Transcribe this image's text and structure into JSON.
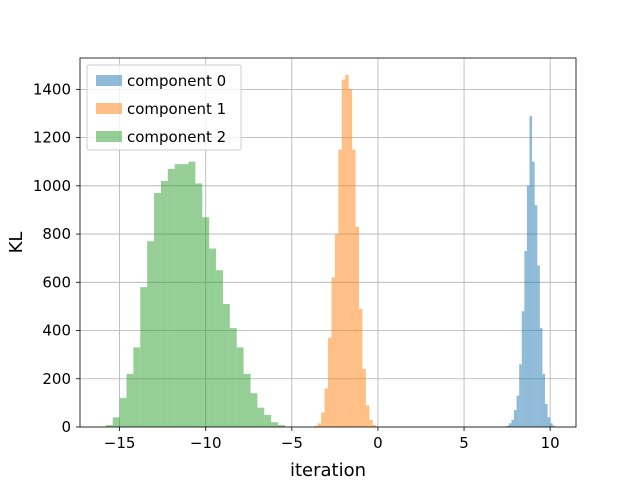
{
  "chart_data": {
    "type": "histogram",
    "xlabel": "iteration",
    "ylabel": "KL",
    "xlim": [
      -17.3,
      11.5
    ],
    "ylim": [
      0,
      1530
    ],
    "xticks": [
      -15,
      -10,
      -5,
      0,
      5,
      10
    ],
    "xtick_labels": [
      "−15",
      "−10",
      "−5",
      "0",
      "5",
      "10"
    ],
    "yticks": [
      0,
      200,
      400,
      600,
      800,
      1000,
      1200,
      1400
    ],
    "ytick_labels": [
      "0",
      "200",
      "400",
      "600",
      "800",
      "1000",
      "1200",
      "1400"
    ],
    "grid": true,
    "legend_position": "top-left",
    "series": [
      {
        "name": "component 0",
        "color": "#1f77b4",
        "alpha": 0.5,
        "bins": [
          [
            7.3,
            7.45,
            2
          ],
          [
            7.45,
            7.6,
            5
          ],
          [
            7.6,
            7.75,
            15
          ],
          [
            7.75,
            7.9,
            30
          ],
          [
            7.9,
            8.05,
            70
          ],
          [
            8.05,
            8.2,
            130
          ],
          [
            8.2,
            8.35,
            260
          ],
          [
            8.35,
            8.5,
            480
          ],
          [
            8.5,
            8.65,
            730
          ],
          [
            8.65,
            8.8,
            1000
          ],
          [
            8.8,
            8.95,
            1290
          ],
          [
            8.95,
            9.1,
            1100
          ],
          [
            9.1,
            9.25,
            920
          ],
          [
            9.25,
            9.4,
            670
          ],
          [
            9.4,
            9.55,
            410
          ],
          [
            9.55,
            9.7,
            220
          ],
          [
            9.7,
            9.85,
            95
          ],
          [
            9.85,
            10.0,
            40
          ],
          [
            10.0,
            10.15,
            15
          ],
          [
            10.15,
            10.3,
            5
          ]
        ]
      },
      {
        "name": "component 1",
        "color": "#ff7f0e",
        "alpha": 0.5,
        "bins": [
          [
            -3.7,
            -3.5,
            5
          ],
          [
            -3.5,
            -3.3,
            15
          ],
          [
            -3.3,
            -3.1,
            60
          ],
          [
            -3.1,
            -2.9,
            160
          ],
          [
            -2.9,
            -2.7,
            370
          ],
          [
            -2.7,
            -2.5,
            620
          ],
          [
            -2.5,
            -2.3,
            800
          ],
          [
            -2.3,
            -2.1,
            1150
          ],
          [
            -2.1,
            -1.9,
            1440
          ],
          [
            -1.9,
            -1.7,
            1460
          ],
          [
            -1.7,
            -1.5,
            1400
          ],
          [
            -1.5,
            -1.3,
            1150
          ],
          [
            -1.3,
            -1.1,
            830
          ],
          [
            -1.1,
            -0.9,
            490
          ],
          [
            -0.9,
            -0.7,
            240
          ],
          [
            -0.7,
            -0.5,
            90
          ],
          [
            -0.5,
            -0.3,
            30
          ],
          [
            -0.3,
            -0.1,
            8
          ]
        ]
      },
      {
        "name": "component 2",
        "color": "#2ca02c",
        "alpha": 0.5,
        "bins": [
          [
            -16.2,
            -15.8,
            2
          ],
          [
            -15.8,
            -15.4,
            8
          ],
          [
            -15.4,
            -15.0,
            40
          ],
          [
            -15.0,
            -14.6,
            120
          ],
          [
            -14.6,
            -14.2,
            220
          ],
          [
            -14.2,
            -13.8,
            330
          ],
          [
            -13.8,
            -13.4,
            580
          ],
          [
            -13.4,
            -13.0,
            770
          ],
          [
            -13.0,
            -12.6,
            970
          ],
          [
            -12.6,
            -12.2,
            1020
          ],
          [
            -12.2,
            -11.8,
            1070
          ],
          [
            -11.8,
            -11.4,
            1090
          ],
          [
            -11.4,
            -11.0,
            1090
          ],
          [
            -11.0,
            -10.6,
            1100
          ],
          [
            -10.6,
            -10.2,
            1010
          ],
          [
            -10.2,
            -9.8,
            870
          ],
          [
            -9.8,
            -9.4,
            740
          ],
          [
            -9.4,
            -9.0,
            650
          ],
          [
            -9.0,
            -8.6,
            510
          ],
          [
            -8.6,
            -8.2,
            410
          ],
          [
            -8.2,
            -7.8,
            330
          ],
          [
            -7.8,
            -7.4,
            220
          ],
          [
            -7.4,
            -7.0,
            140
          ],
          [
            -7.0,
            -6.6,
            80
          ],
          [
            -6.6,
            -6.2,
            50
          ],
          [
            -6.2,
            -5.8,
            20
          ],
          [
            -5.8,
            -5.4,
            8
          ],
          [
            -5.4,
            -5.0,
            2
          ]
        ]
      }
    ]
  }
}
